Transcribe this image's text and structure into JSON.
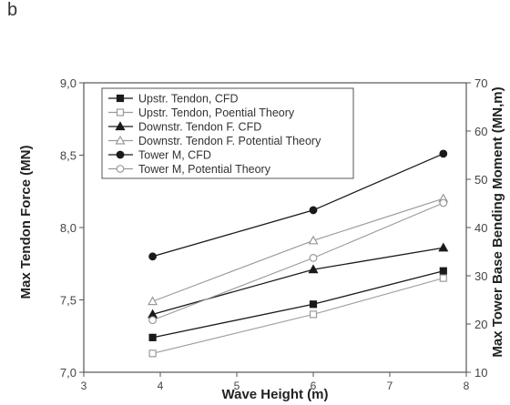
{
  "panel_label": "b",
  "chart_data": {
    "type": "line",
    "xlabel": "Wave Height (m)",
    "ylabel_left": "Max Tendon Force (MN)",
    "ylabel_right": "Max Tower Base Bending Moment (MN,m)",
    "xlim": [
      3,
      8
    ],
    "ylim_left": [
      7.0,
      9.0
    ],
    "ylim_right": [
      10,
      70
    ],
    "x_ticks": [
      "3",
      "4",
      "5",
      "6",
      "7",
      "8"
    ],
    "y_left_ticks": [
      "7,0",
      "7,5",
      "8,0",
      "8,5",
      "9,0"
    ],
    "y_right_ticks": [
      "10",
      "20",
      "30",
      "40",
      "50",
      "60",
      "70"
    ],
    "grid": false,
    "legend_position": "top-left",
    "series": [
      {
        "name": "Upstr. Tendon, CFD",
        "axis": "left",
        "marker": "square-filled",
        "color": "#1a1a1a",
        "x": [
          3.9,
          6.0,
          7.7
        ],
        "values": [
          7.24,
          7.47,
          7.7
        ]
      },
      {
        "name": "Upstr. Tendon, Poential Theory",
        "axis": "left",
        "marker": "square-open",
        "color": "#9a9a9a",
        "x": [
          3.9,
          6.0,
          7.7
        ],
        "values": [
          7.13,
          7.4,
          7.65
        ]
      },
      {
        "name": "Downstr. Tendon F. CFD",
        "axis": "left",
        "marker": "triangle-filled",
        "color": "#1a1a1a",
        "x": [
          3.9,
          6.0,
          7.7
        ],
        "values": [
          7.4,
          7.71,
          7.86
        ]
      },
      {
        "name": "Downstr.  Tendon F. Potential Theory",
        "axis": "left",
        "marker": "triangle-open",
        "color": "#9a9a9a",
        "x": [
          3.9,
          6.0,
          7.7
        ],
        "values": [
          7.49,
          7.91,
          8.2
        ]
      },
      {
        "name": "Tower M, CFD",
        "axis": "left",
        "marker": "circle-filled",
        "color": "#1a1a1a",
        "x": [
          3.9,
          6.0,
          7.7
        ],
        "values": [
          7.8,
          8.12,
          8.51
        ]
      },
      {
        "name": "Tower M, Potential Theory",
        "axis": "left",
        "marker": "circle-open",
        "color": "#9a9a9a",
        "x": [
          3.9,
          6.0,
          7.7
        ],
        "values": [
          7.36,
          7.79,
          8.17
        ]
      }
    ]
  }
}
